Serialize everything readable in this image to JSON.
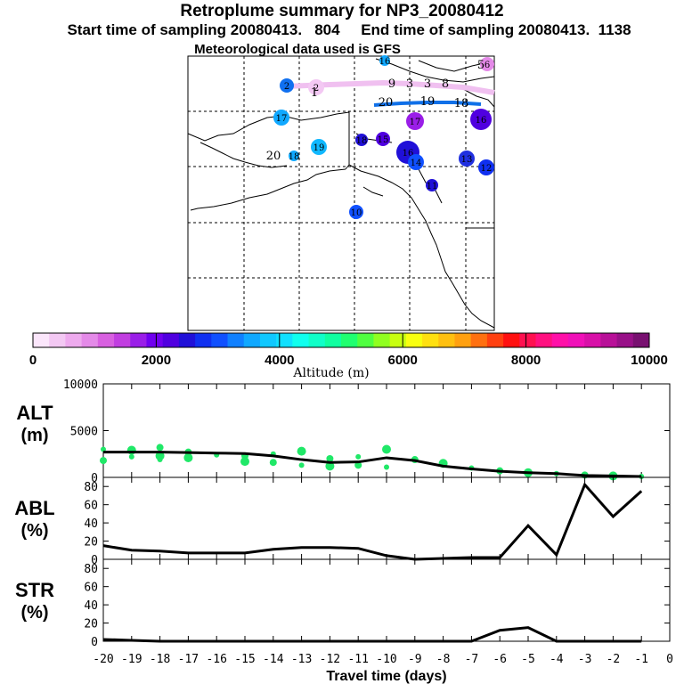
{
  "header": {
    "title": "Retroplume summary for NP3_20080412",
    "subtitle": "Start time of sampling 20080413.   804     End time of sampling 20080413.  1138",
    "met_line": "Meteorological data used is GFS"
  },
  "map": {
    "labels": [
      "16",
      "6",
      "5",
      "3",
      "2",
      "1",
      "3",
      "8",
      "9",
      "2",
      "20",
      "19",
      "18",
      "17",
      "17",
      "16",
      "15",
      "19",
      "18",
      "20",
      "18",
      "16",
      "14",
      "13",
      "12",
      "11",
      "10"
    ]
  },
  "colorbar": {
    "ticks": [
      "0",
      "2000",
      "4000",
      "6000",
      "8000",
      "10000"
    ],
    "title": "Altitude (m)",
    "colors": [
      "#fbe6fb",
      "#f3c8f3",
      "#eeaaee",
      "#e48ae8",
      "#d860e0",
      "#c13ee0",
      "#9a1ee8",
      "#7000f0",
      "#5000e0",
      "#2010d8",
      "#1030f0",
      "#1050ff",
      "#1080ff",
      "#10a8ff",
      "#10c8ff",
      "#10e0ff",
      "#10ffee",
      "#10ffc8",
      "#10ffa0",
      "#20ff70",
      "#50ff40",
      "#90ff20",
      "#c8ff10",
      "#f8ff10",
      "#ffe010",
      "#ffc010",
      "#ffa010",
      "#ff7010",
      "#ff4010",
      "#ff1010",
      "#ff1050",
      "#ff1080",
      "#ff10a8",
      "#f010b8",
      "#d810a8",
      "#b81098",
      "#981088",
      "#781070"
    ]
  },
  "chart_data": [
    {
      "type": "line",
      "panel": "ALT",
      "ylabel": "ALT\n(m)",
      "ylim": [
        0,
        10000
      ],
      "yticks": [
        "0",
        "5000",
        "10000"
      ],
      "x": [
        -20,
        -19,
        -18,
        -17,
        -16,
        -15,
        -14,
        -13,
        -12,
        -11,
        -10,
        -9,
        -8,
        -7,
        -6,
        -5,
        -4,
        -3,
        -2,
        -1
      ],
      "series": [
        {
          "name": "median altitude",
          "values": [
            2700,
            2700,
            2700,
            2650,
            2600,
            2550,
            2300,
            1900,
            1600,
            1650,
            2100,
            1800,
            1200,
            900,
            650,
            500,
            400,
            200,
            150,
            100
          ]
        }
      ],
      "scatter": {
        "name": "altitude samples",
        "x": [
          -20,
          -20,
          -19,
          -19,
          -18,
          -18,
          -18,
          -17,
          -17,
          -16,
          -15,
          -15,
          -14,
          -14,
          -13,
          -13,
          -12,
          -12,
          -11,
          -11,
          -10,
          -10,
          -9,
          -8,
          -7,
          -6,
          -5,
          -4,
          -3,
          -2,
          -1
        ],
        "y": [
          3000,
          1800,
          2900,
          2200,
          3200,
          2300,
          1900,
          2700,
          2100,
          2400,
          2300,
          1700,
          2500,
          1600,
          2800,
          1300,
          2000,
          1200,
          2200,
          1300,
          3000,
          1100,
          1900,
          1500,
          1000,
          700,
          500,
          400,
          250,
          150,
          100
        ]
      }
    },
    {
      "type": "line",
      "panel": "ABL",
      "ylabel": "ABL\n(%)",
      "ylim": [
        0,
        90
      ],
      "yticks": [
        "0",
        "20",
        "40",
        "60",
        "80"
      ],
      "x": [
        -20,
        -19,
        -18,
        -17,
        -16,
        -15,
        -14,
        -13,
        -12,
        -11,
        -10,
        -9,
        -8,
        -7,
        -6,
        -5,
        -4,
        -3,
        -2,
        -1
      ],
      "series": [
        {
          "name": "ABL fraction",
          "values": [
            15,
            10,
            9,
            7,
            7,
            7,
            11,
            13,
            13,
            12,
            4,
            0,
            1,
            2,
            2,
            37,
            5,
            82,
            47,
            75
          ]
        }
      ]
    },
    {
      "type": "line",
      "panel": "STR",
      "ylabel": "STR\n(%)",
      "ylim": [
        0,
        90
      ],
      "yticks": [
        "0",
        "20",
        "40",
        "60",
        "80"
      ],
      "x": [
        -20,
        -19,
        -18,
        -17,
        -16,
        -15,
        -14,
        -13,
        -12,
        -11,
        -10,
        -9,
        -8,
        -7,
        -6,
        -5,
        -4,
        -3,
        -2,
        -1
      ],
      "series": [
        {
          "name": "STR fraction",
          "values": [
            2,
            1,
            0,
            0,
            0,
            0,
            0,
            0,
            0,
            0,
            0,
            0,
            0,
            0,
            12,
            15,
            0,
            0,
            0,
            0
          ]
        }
      ],
      "xlabel": "Travel time (days)",
      "xticks": [
        "-20",
        "-19",
        "-18",
        "-17",
        "-16",
        "-15",
        "-14",
        "-13",
        "-12",
        "-11",
        "-10",
        "-9",
        "-8",
        "-7",
        "-6",
        "-5",
        "-4",
        "-3",
        "-2",
        "-1",
        "0"
      ]
    }
  ]
}
